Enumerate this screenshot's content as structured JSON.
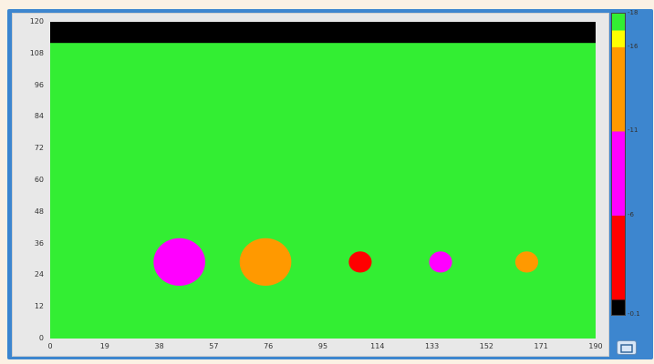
{
  "window": {
    "frame_color": "#3d86cf",
    "background": "#fbf1e4"
  },
  "chart_data": {
    "type": "heatmap",
    "xlim": [
      0,
      190
    ],
    "ylim": [
      0,
      120
    ],
    "x_ticks": [
      "0",
      "19",
      "38",
      "57",
      "76",
      "95",
      "114",
      "133",
      "152",
      "171",
      "190"
    ],
    "y_ticks": [
      "0",
      "12",
      "24",
      "36",
      "48",
      "60",
      "72",
      "84",
      "96",
      "108",
      "120"
    ],
    "background_color": "#33ee33",
    "features": [
      {
        "shape": "band",
        "color": "#000000",
        "y_from": 112,
        "y_to": 120
      },
      {
        "shape": "circle",
        "color": "#ff00ff",
        "cx": 45,
        "cy": 29,
        "r": 9
      },
      {
        "shape": "circle",
        "color": "#ff9900",
        "cx": 75,
        "cy": 29,
        "r": 9
      },
      {
        "shape": "circle",
        "color": "#ff0000",
        "cx": 108,
        "cy": 29,
        "r": 4
      },
      {
        "shape": "circle",
        "color": "#ff00ff",
        "cx": 136,
        "cy": 29,
        "r": 4
      },
      {
        "shape": "circle",
        "color": "#ff9900",
        "cx": 166,
        "cy": 29,
        "r": 4
      }
    ],
    "colorbar": {
      "labels": [
        "18",
        "16",
        "11",
        "6",
        "0.1"
      ],
      "bands": [
        {
          "from": 0.1,
          "to": 1,
          "color": "#000000"
        },
        {
          "from": 1,
          "to": 6,
          "color": "#ff0000"
        },
        {
          "from": 6,
          "to": 11,
          "color": "#ff00ff"
        },
        {
          "from": 11,
          "to": 16,
          "color": "#ff9900"
        },
        {
          "from": 16,
          "to": 17,
          "color": "#ffff00"
        },
        {
          "from": 17,
          "to": 18,
          "color": "#33ee33"
        }
      ]
    }
  },
  "icons": {
    "corner_button": "expand-icon"
  }
}
